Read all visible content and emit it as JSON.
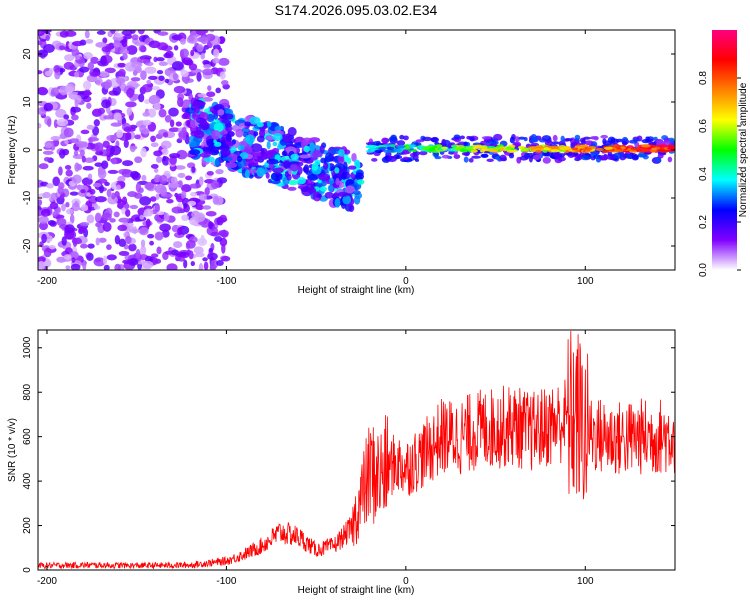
{
  "title": "S174.2026.095.03.02.E34",
  "chart_data": [
    {
      "type": "heatmap",
      "name": "spectrogram",
      "xlabel": "Height of straight line (km)",
      "ylabel": "Frequency (Hz)",
      "xlim": [
        -205,
        150
      ],
      "ylim": [
        -25,
        25
      ],
      "xticks": [
        -200,
        -100,
        0,
        100
      ],
      "yticks": [
        -20,
        -10,
        0,
        10,
        20
      ],
      "colorbar": {
        "label": "Normalized spectral amplitude",
        "range": [
          0,
          1
        ],
        "ticks": [
          "0.0",
          "0.2",
          "0.4",
          "0.6",
          "0.8"
        ],
        "colors": [
          "#ffffff",
          "#8000ff",
          "#0000ff",
          "#00ffff",
          "#00ff00",
          "#ffff00",
          "#ff8000",
          "#ff0000",
          "#ff0080"
        ]
      },
      "features": [
        {
          "region": "noise",
          "x_range": [
            -205,
            -110
          ],
          "freq_range": [
            -25,
            25
          ],
          "amplitude": 0.1
        },
        {
          "region": "descending_track",
          "x_start": -120,
          "x_end": -25,
          "freq_start": 5,
          "freq_end": -7,
          "amplitude": 0.25
        },
        {
          "region": "steady_line",
          "x_start": -20,
          "x_end": 150,
          "freq": 0.3,
          "amplitude": 0.9
        }
      ]
    },
    {
      "type": "line",
      "name": "snr",
      "xlabel": "Height of straight line (km)",
      "ylabel": "SNR (10 * v/v)",
      "xlim": [
        -205,
        150
      ],
      "ylim": [
        0,
        1080
      ],
      "xticks": [
        -200,
        -100,
        0,
        100
      ],
      "yticks": [
        0,
        200,
        400,
        600,
        800,
        1000
      ],
      "color": "#ff0000",
      "series": [
        {
          "name": "SNR",
          "x": [
            -205,
            -180,
            -150,
            -120,
            -100,
            -90,
            -80,
            -70,
            -60,
            -50,
            -40,
            -30,
            -25,
            -20,
            -15,
            -10,
            -5,
            0,
            10,
            20,
            30,
            40,
            50,
            60,
            70,
            80,
            90,
            95,
            100,
            110,
            120,
            130,
            140,
            150
          ],
          "values": [
            20,
            22,
            20,
            22,
            40,
            70,
            110,
            170,
            150,
            90,
            110,
            190,
            320,
            440,
            420,
            460,
            480,
            460,
            520,
            600,
            600,
            630,
            640,
            650,
            620,
            650,
            680,
            700,
            620,
            600,
            590,
            600,
            600,
            610
          ]
        }
      ]
    }
  ]
}
